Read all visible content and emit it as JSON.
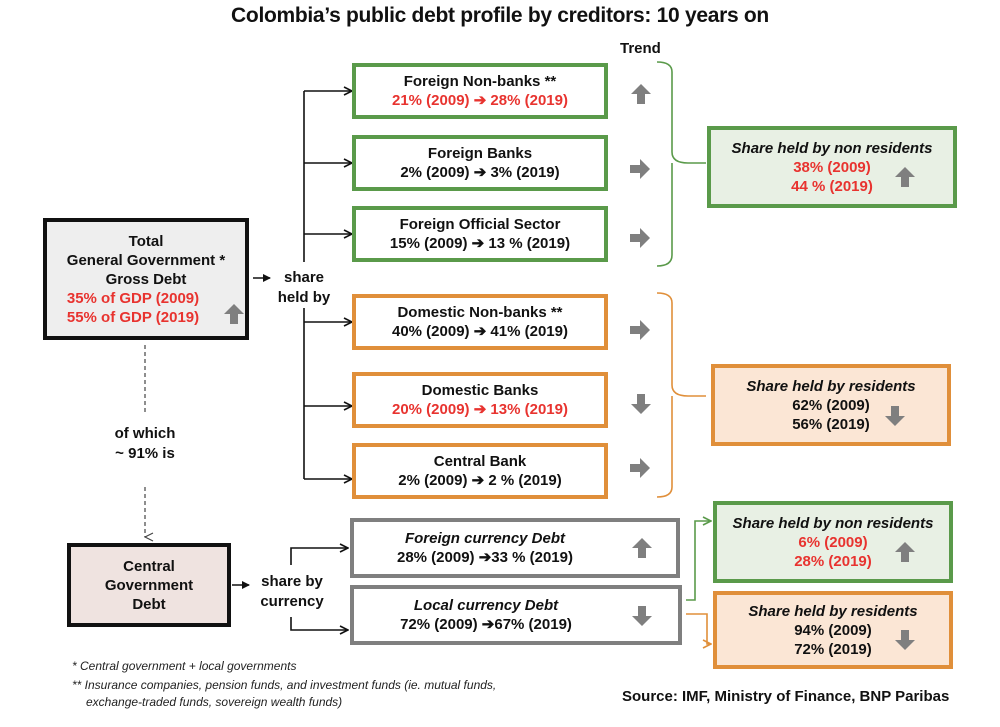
{
  "title": "Colombia’s public debt profile by creditors: 10 years on",
  "trend_header": "Trend",
  "colors": {
    "green": "#5a9a4a",
    "orange": "#e08f3a",
    "grey": "#7f7f7f",
    "red": "#e8332f",
    "arrow_grey": "#7f7f7f"
  },
  "total": {
    "line1": "Total",
    "line2": "General Government *",
    "line3": "Gross Debt",
    "v2009": "35% of GDP (2009)",
    "v2019": "55% of GDP (2019)",
    "trend": "up-arrow-icon"
  },
  "share_held_by": {
    "line1": "share",
    "line2": "held by"
  },
  "of_which": {
    "line1": "of which",
    "line2": "~ 91% is"
  },
  "creditors": [
    {
      "name": "Foreign Non-banks **",
      "values": "21% (2009) ➔ 28% (2019)",
      "trend": "up-arrow-icon",
      "highlight": true
    },
    {
      "name": "Foreign Banks",
      "values": "2% (2009) ➔ 3% (2019)",
      "trend": "right-arrow-icon",
      "highlight": false
    },
    {
      "name": "Foreign Official Sector",
      "values": "15% (2009) ➔ 13 % (2019)",
      "trend": "right-arrow-icon",
      "highlight": false
    },
    {
      "name": "Domestic Non-banks **",
      "values": "40% (2009) ➔ 41% (2019)",
      "trend": "right-arrow-icon",
      "highlight": false
    },
    {
      "name": "Domestic Banks",
      "values": "20% (2009) ➔ 13% (2019)",
      "trend": "down-arrow-icon",
      "highlight": true
    },
    {
      "name": "Central Bank",
      "values": "2% (2009) ➔ 2 % (2019)",
      "trend": "right-arrow-icon",
      "highlight": false
    }
  ],
  "summary_nonres": {
    "title": "Share held by non residents",
    "v2009": "38% (2009)",
    "v2019": "44 % (2019)",
    "trend": "up-arrow-icon"
  },
  "summary_res": {
    "title": "Share held by residents",
    "v2009": "62% (2009)",
    "v2019": "56% (2019)",
    "trend": "down-arrow-icon"
  },
  "central": {
    "line1": "Central",
    "line2": "Government",
    "line3": "Debt"
  },
  "share_by_currency": {
    "line1": "share by",
    "line2": "currency"
  },
  "currency": [
    {
      "name": "Foreign currency Debt",
      "values": "28% (2009) ➔33 % (2019)",
      "trend": "up-arrow-icon"
    },
    {
      "name": "Local currency Debt",
      "values": "72% (2009) ➔67% (2019)",
      "trend": "down-arrow-icon"
    }
  ],
  "local_nonres": {
    "title": "Share held by non residents",
    "v2009": "6% (2009)",
    "v2019": "28% (2019)",
    "trend": "up-arrow-icon"
  },
  "local_res": {
    "title": "Share held by residents",
    "v2009": "94% (2009)",
    "v2019": "72% (2019)",
    "trend": "down-arrow-icon"
  },
  "footnotes": {
    "f1": "* Central government + local governments",
    "f2a": "** Insurance companies, pension funds, and investment funds (ie. mutual funds,",
    "f2b": "exchange-traded funds, sovereign wealth funds)"
  },
  "source": "Source: IMF, Ministry of Finance, BNP Paribas"
}
